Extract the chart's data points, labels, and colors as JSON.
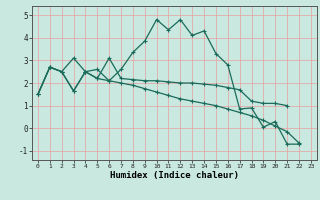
{
  "xlabel": "Humidex (Indice chaleur)",
  "background_color": "#c8e8e0",
  "line_color": "#1a6b5a",
  "grid_color": "#e8b0b0",
  "xlim": [
    -0.5,
    23.5
  ],
  "ylim": [
    -1.4,
    5.4
  ],
  "xticks": [
    0,
    1,
    2,
    3,
    4,
    5,
    6,
    7,
    8,
    9,
    10,
    11,
    12,
    13,
    14,
    15,
    16,
    17,
    18,
    19,
    20,
    21,
    22,
    23
  ],
  "yticks": [
    -1,
    0,
    1,
    2,
    3,
    4,
    5
  ],
  "curve1_x": [
    0,
    1,
    2,
    3,
    4,
    5,
    6,
    7,
    8,
    9,
    10,
    11,
    12,
    13,
    14,
    15,
    16,
    17,
    18,
    19,
    20,
    21,
    22
  ],
  "curve1_y": [
    1.5,
    2.7,
    2.5,
    3.1,
    2.5,
    2.6,
    2.1,
    2.6,
    3.35,
    3.85,
    4.8,
    4.35,
    4.8,
    4.1,
    4.3,
    3.3,
    2.8,
    0.85,
    0.9,
    0.05,
    0.3,
    -0.7,
    -0.7
  ],
  "curve2_x": [
    0,
    1,
    2,
    3,
    4,
    5,
    6,
    7,
    8,
    9,
    10,
    11,
    12,
    13,
    14,
    15,
    16,
    17,
    18,
    19,
    20,
    21
  ],
  "curve2_y": [
    1.5,
    2.7,
    2.5,
    1.65,
    2.5,
    2.2,
    3.1,
    2.2,
    2.15,
    2.1,
    2.1,
    2.05,
    2.0,
    2.0,
    1.95,
    1.9,
    1.8,
    1.7,
    1.2,
    1.1,
    1.1,
    1.0
  ],
  "curve3_x": [
    0,
    1,
    2,
    3,
    4,
    5,
    6,
    7,
    8,
    9,
    10,
    11,
    12,
    13,
    14,
    15,
    16,
    17,
    18,
    19,
    20,
    21,
    22
  ],
  "curve3_y": [
    1.5,
    2.7,
    2.5,
    1.65,
    2.5,
    2.2,
    2.1,
    2.0,
    1.9,
    1.75,
    1.6,
    1.45,
    1.3,
    1.2,
    1.1,
    1.0,
    0.85,
    0.7,
    0.55,
    0.35,
    0.1,
    -0.15,
    -0.65
  ]
}
